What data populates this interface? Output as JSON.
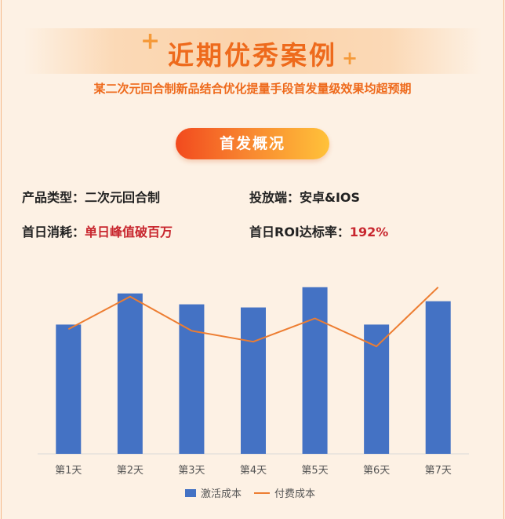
{
  "header": {
    "title": "近期优秀案例",
    "subtitle": "某二次元回合制新品结合优化提量手段首发量级效果均超预期"
  },
  "section": {
    "label": "首发概况"
  },
  "info": {
    "product_type_label": "产品类型：",
    "product_type_value": "二次元回合制",
    "platform_label": "投放端：",
    "platform_value": "安卓&IOS",
    "first_day_spend_label": "首日消耗：",
    "first_day_spend_value": "单日峰值破百万",
    "first_day_roi_label": "首日ROI达标率：",
    "first_day_roi_value": "192%"
  },
  "colors": {
    "accent": "#ee6a1c",
    "bar": "#4472c4",
    "line": "#ed7d31",
    "highlight": "#c8262e",
    "background": "#fdf1e4"
  },
  "chart_data": {
    "type": "bar",
    "categories": [
      "第1天",
      "第2天",
      "第3天",
      "第4天",
      "第5天",
      "第6天",
      "第7天"
    ],
    "series": [
      {
        "name": "激活成本",
        "type": "bar",
        "values": [
          83,
          103,
          96,
          94,
          107,
          83,
          98
        ]
      },
      {
        "name": "付费成本",
        "type": "line",
        "values": [
          80,
          101,
          79,
          72,
          87,
          69,
          107
        ]
      }
    ],
    "ylim": [
      0,
      120
    ],
    "grid": false,
    "legend": "bottom"
  }
}
